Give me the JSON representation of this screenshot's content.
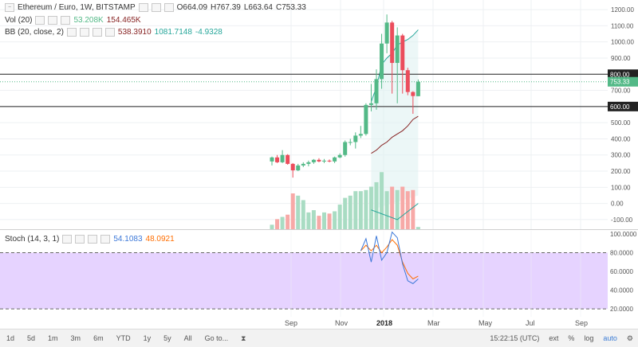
{
  "header": {
    "symbol": "Ethereum / Euro, 1W, BITSTAMP",
    "open": "O664.09",
    "high": "H767.39",
    "low": "L663.64",
    "close": "C753.33"
  },
  "indicators": {
    "vol": {
      "label": "Vol (20)",
      "v1": "53.208K",
      "v2": "154.465K"
    },
    "bb": {
      "label": "BB (20, close, 2)",
      "v1": "538.3910",
      "v2": "1081.7148",
      "v3": "-4.9328"
    },
    "stoch": {
      "label": "Stoch (14, 3, 1)",
      "v1": "54.1083",
      "v2": "48.0921"
    }
  },
  "price_axis": {
    "ticks": [
      "1200.00",
      "1100.00",
      "1000.00",
      "900.00",
      "800.00",
      "700.00",
      "600.00",
      "500.00",
      "400.00",
      "300.00",
      "200.00",
      "100.00",
      "0.00",
      "-100.00"
    ],
    "badge_800": "800.00",
    "badge_last": "753.33",
    "badge_600": "600.00"
  },
  "stoch_axis": {
    "ticks": [
      "100.0000",
      "80.0000",
      "60.0000",
      "40.0000",
      "20.0000"
    ]
  },
  "time_axis": [
    "Sep",
    "Nov",
    "2018",
    "Mar",
    "May",
    "Jul",
    "Sep"
  ],
  "bottom_bar": {
    "timeframes": [
      "1d",
      "5d",
      "1m",
      "3m",
      "6m",
      "YTD",
      "1y",
      "5y",
      "All",
      "Go to..."
    ],
    "clock": "15:22:15 (UTC)",
    "ext": "ext",
    "pct": "%",
    "log": "log",
    "auto": "auto"
  },
  "colors": {
    "up": "#53b987",
    "down": "#eb4d5c",
    "vol_up": "#a9dcc3",
    "vol_down": "#f7a9a7",
    "bb_line": "#26a69a",
    "bb_basis": "#872323",
    "stoch_k": "#3c78d8",
    "stoch_d": "#ff6d00",
    "stoch_band": "#e6d3ff"
  },
  "chart_data": {
    "type": "candlestick",
    "candles": [
      {
        "o": 260,
        "h": 290,
        "l": 235,
        "c": 285
      },
      {
        "o": 285,
        "h": 300,
        "l": 250,
        "c": 255
      },
      {
        "o": 255,
        "h": 330,
        "l": 250,
        "c": 300
      },
      {
        "o": 300,
        "h": 305,
        "l": 240,
        "c": 245
      },
      {
        "o": 245,
        "h": 250,
        "l": 160,
        "c": 205
      },
      {
        "o": 205,
        "h": 245,
        "l": 200,
        "c": 235
      },
      {
        "o": 235,
        "h": 255,
        "l": 225,
        "c": 245
      },
      {
        "o": 245,
        "h": 265,
        "l": 230,
        "c": 255
      },
      {
        "o": 255,
        "h": 275,
        "l": 245,
        "c": 270
      },
      {
        "o": 270,
        "h": 280,
        "l": 255,
        "c": 260
      },
      {
        "o": 260,
        "h": 275,
        "l": 250,
        "c": 265
      },
      {
        "o": 265,
        "h": 272,
        "l": 255,
        "c": 260
      },
      {
        "o": 260,
        "h": 290,
        "l": 250,
        "c": 285
      },
      {
        "o": 285,
        "h": 310,
        "l": 280,
        "c": 300
      },
      {
        "o": 300,
        "h": 390,
        "l": 290,
        "c": 380
      },
      {
        "o": 380,
        "h": 400,
        "l": 360,
        "c": 380
      },
      {
        "o": 380,
        "h": 440,
        "l": 340,
        "c": 420
      },
      {
        "o": 420,
        "h": 480,
        "l": 405,
        "c": 430
      },
      {
        "o": 430,
        "h": 620,
        "l": 420,
        "c": 610
      },
      {
        "o": 610,
        "h": 740,
        "l": 570,
        "c": 620
      },
      {
        "o": 620,
        "h": 830,
        "l": 580,
        "c": 770
      },
      {
        "o": 770,
        "h": 1050,
        "l": 710,
        "c": 990
      },
      {
        "o": 990,
        "h": 1170,
        "l": 930,
        "c": 1120
      },
      {
        "o": 1120,
        "h": 1130,
        "l": 680,
        "c": 870
      },
      {
        "o": 870,
        "h": 1090,
        "l": 620,
        "c": 1040
      },
      {
        "o": 1040,
        "h": 1050,
        "l": 680,
        "c": 825
      },
      {
        "o": 825,
        "h": 840,
        "l": 670,
        "c": 690
      },
      {
        "o": 690,
        "h": 695,
        "l": 555,
        "c": 665
      },
      {
        "o": 664.09,
        "h": 767.39,
        "l": 663.64,
        "c": 753.33
      }
    ],
    "volumes": [
      20,
      45,
      55,
      65,
      160,
      150,
      130,
      75,
      85,
      60,
      75,
      70,
      80,
      110,
      140,
      150,
      170,
      170,
      175,
      190,
      210,
      255,
      170,
      190,
      175,
      190,
      170,
      175,
      10
    ],
    "bb_upper_tail": [
      630,
      720,
      860,
      900,
      930,
      980,
      1000,
      1015,
      1040,
      1075
    ],
    "bb_basis_tail": [
      310,
      330,
      360,
      380,
      410,
      430,
      450,
      480,
      520,
      540
    ],
    "stoch_k": [
      82,
      95,
      70,
      98,
      72,
      80,
      102,
      96,
      68,
      50,
      47,
      52
    ],
    "stoch_d": [
      82,
      88,
      82,
      88,
      80,
      86,
      94,
      88,
      70,
      58,
      52,
      55
    ],
    "ylim_price": [
      -130,
      1230
    ],
    "ylim_stoch": [
      15,
      100
    ],
    "hlines": [
      800,
      600
    ],
    "stoch_band": [
      20,
      80
    ]
  }
}
